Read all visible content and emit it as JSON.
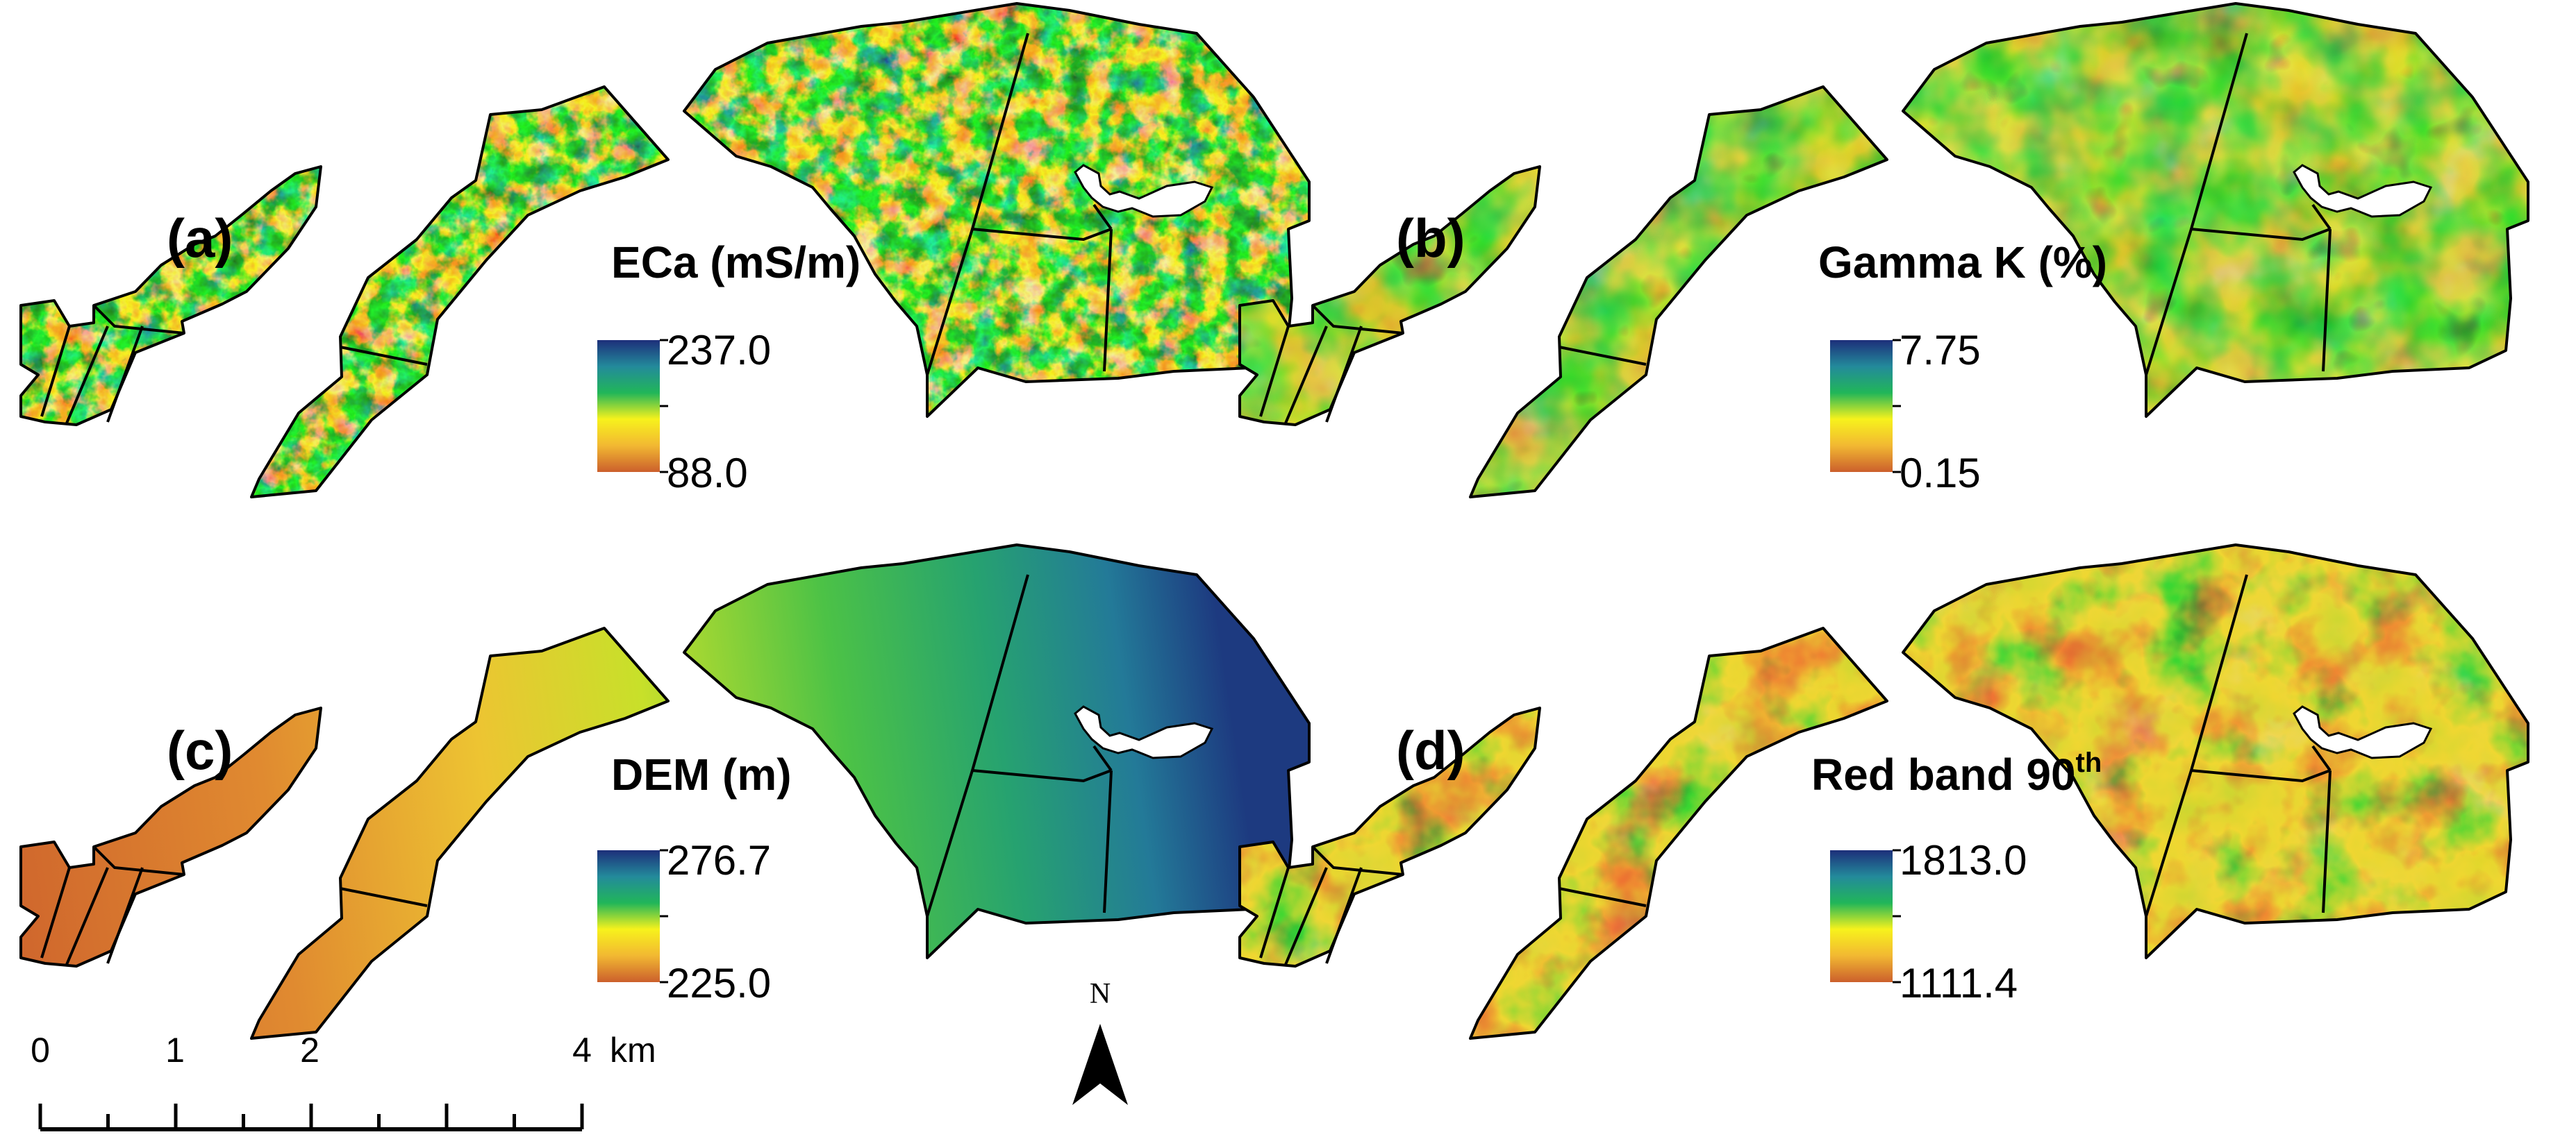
{
  "panels": [
    {
      "id": "a",
      "label": "(a)",
      "legend_title": "ECa (mS/m)",
      "legend_max": "237.0",
      "legend_min": "88.0",
      "color_ramp": [
        "#cc5f2c",
        "#f2b832",
        "#f7f21c",
        "#21b659",
        "#238a9b",
        "#1d2f7a"
      ],
      "fill_style": "texture-high"
    },
    {
      "id": "b",
      "label": "(b)",
      "legend_title": "Gamma K (%)",
      "legend_max": "7.75",
      "legend_min": "0.15",
      "color_ramp": [
        "#cc5f2c",
        "#f2b832",
        "#f7f21c",
        "#21b659",
        "#238a9b",
        "#1d2f7a"
      ],
      "fill_style": "texture-medium"
    },
    {
      "id": "c",
      "label": "(c)",
      "legend_title": "DEM (m)",
      "legend_max": "276.7",
      "legend_min": "225.0",
      "color_ramp": [
        "#cc5f2c",
        "#f2b832",
        "#f7f21c",
        "#21b659",
        "#238a9b",
        "#1d2f7a"
      ],
      "fill_style": "smooth-gradient"
    },
    {
      "id": "d",
      "label": "(d)",
      "legend_title": "Red band 90",
      "legend_title_sup": "th",
      "legend_max": "1813.0",
      "legend_min": "1111.4",
      "color_ramp": [
        "#cc5f2c",
        "#f2b832",
        "#f7f21c",
        "#21b659",
        "#238a9b",
        "#1d2f7a"
      ],
      "fill_style": "texture-blobs"
    }
  ],
  "scale_bar": {
    "ticks": [
      "0",
      "1",
      "2",
      "4"
    ],
    "unit": "km"
  },
  "north_arrow": {
    "label": "N"
  }
}
